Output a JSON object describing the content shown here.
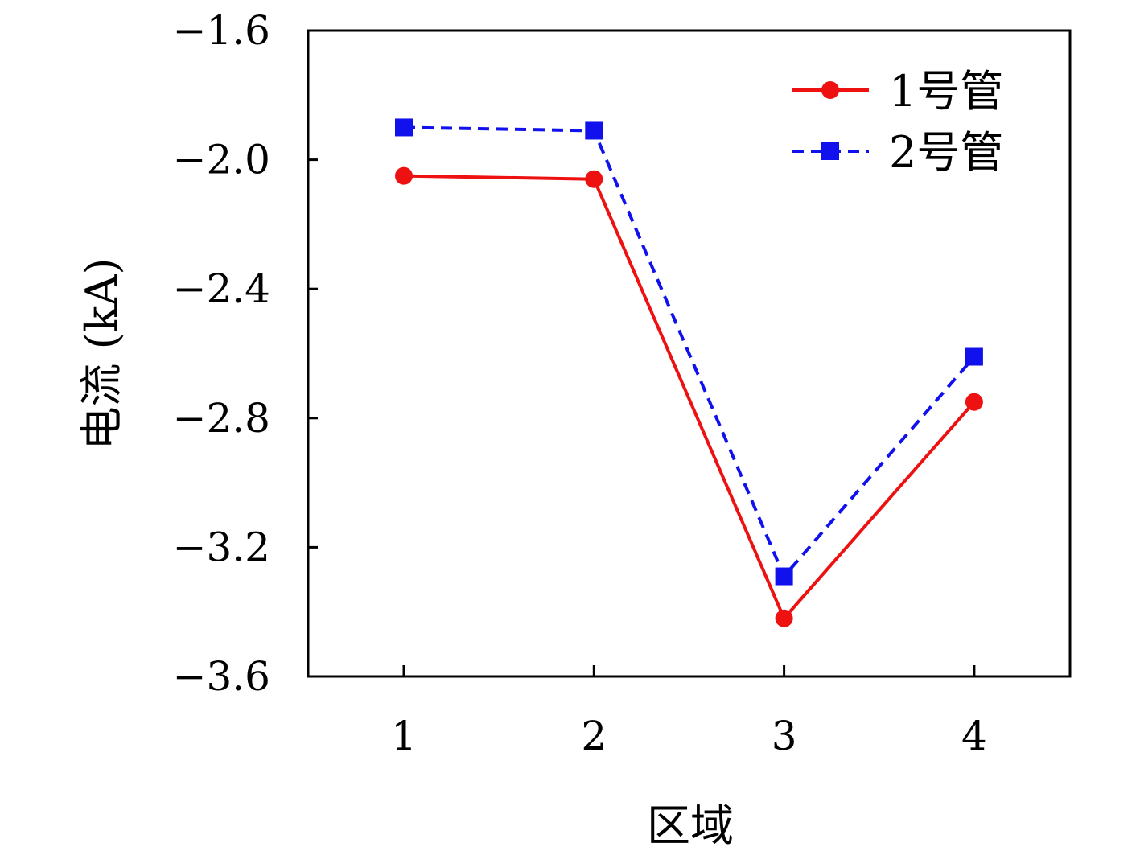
{
  "chart_data": {
    "type": "line",
    "x": [
      1,
      2,
      3,
      4
    ],
    "xticks": [
      "1",
      "2",
      "3",
      "4"
    ],
    "xlabel": "区域",
    "ylabel": "电流 (kA)",
    "ylim": [
      -3.6,
      -1.6
    ],
    "yticks": [
      "−1.6",
      "−2.0",
      "−2.4",
      "−2.8",
      "−3.2",
      "−3.6"
    ],
    "grid": false,
    "legend_position": "top-right",
    "series": [
      {
        "name": "1号管",
        "values": [
          -2.05,
          -2.06,
          -3.42,
          -2.75
        ],
        "color": "#ee1111",
        "marker": "circle",
        "dash": "solid"
      },
      {
        "name": "2号管",
        "values": [
          -1.9,
          -1.91,
          -3.29,
          -2.61
        ],
        "color": "#1111ee",
        "marker": "square",
        "dash": "dashed"
      }
    ]
  }
}
